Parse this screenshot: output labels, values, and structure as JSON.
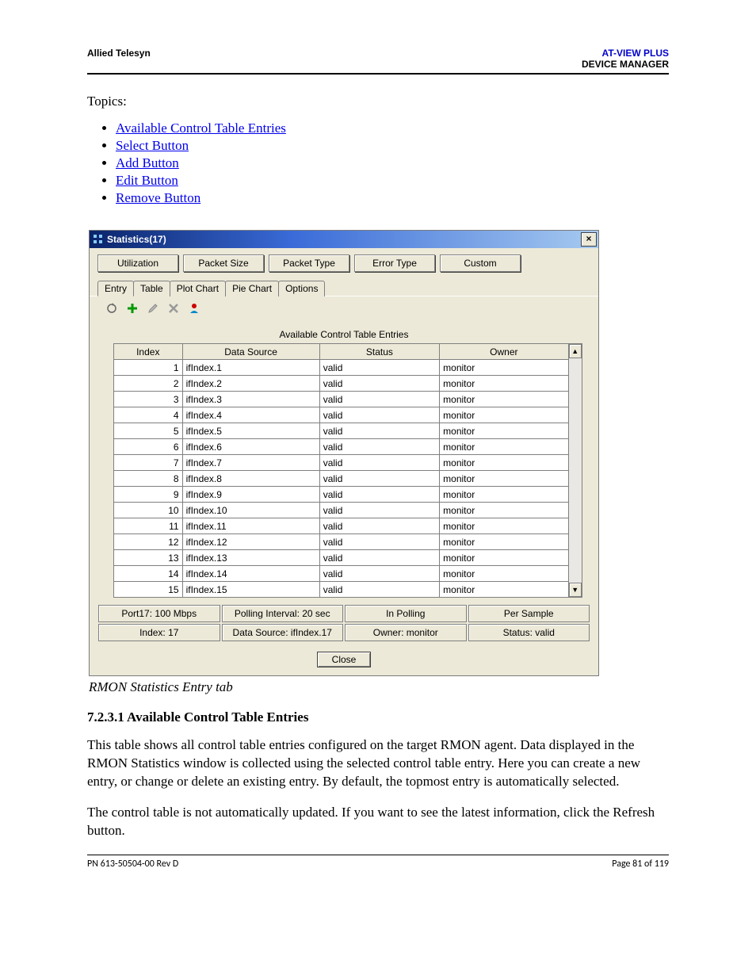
{
  "header": {
    "left": "Allied Telesyn",
    "right1": "AT-VIEW PLUS",
    "right2": "DEVICE MANAGER"
  },
  "topics_label": "Topics:",
  "topics": [
    "Available Control Table Entries",
    "Select Button",
    "Add Button",
    "Edit Button",
    "Remove Button"
  ],
  "window": {
    "title": "Statistics(17)",
    "close_x": "×",
    "tabs": [
      "Utilization",
      "Packet Size",
      "Packet Type",
      "Error Type",
      "Custom"
    ],
    "subtabs": [
      "Entry",
      "Table",
      "Plot Chart",
      "Pie Chart",
      "Options"
    ],
    "active_subtab": 0,
    "toolbar_icons": [
      "refresh",
      "add",
      "edit",
      "delete",
      "owner"
    ],
    "table_title": "Available Control Table Entries",
    "columns": [
      "Index",
      "Data Source",
      "Status",
      "Owner"
    ],
    "rows": [
      {
        "index": "1",
        "ds": "ifIndex.1",
        "status": "valid",
        "owner": "monitor"
      },
      {
        "index": "2",
        "ds": "ifIndex.2",
        "status": "valid",
        "owner": "monitor"
      },
      {
        "index": "3",
        "ds": "ifIndex.3",
        "status": "valid",
        "owner": "monitor"
      },
      {
        "index": "4",
        "ds": "ifIndex.4",
        "status": "valid",
        "owner": "monitor"
      },
      {
        "index": "5",
        "ds": "ifIndex.5",
        "status": "valid",
        "owner": "monitor"
      },
      {
        "index": "6",
        "ds": "ifIndex.6",
        "status": "valid",
        "owner": "monitor"
      },
      {
        "index": "7",
        "ds": "ifIndex.7",
        "status": "valid",
        "owner": "monitor"
      },
      {
        "index": "8",
        "ds": "ifIndex.8",
        "status": "valid",
        "owner": "monitor"
      },
      {
        "index": "9",
        "ds": "ifIndex.9",
        "status": "valid",
        "owner": "monitor"
      },
      {
        "index": "10",
        "ds": "ifIndex.10",
        "status": "valid",
        "owner": "monitor"
      },
      {
        "index": "11",
        "ds": "ifIndex.11",
        "status": "valid",
        "owner": "monitor"
      },
      {
        "index": "12",
        "ds": "ifIndex.12",
        "status": "valid",
        "owner": "monitor"
      },
      {
        "index": "13",
        "ds": "ifIndex.13",
        "status": "valid",
        "owner": "monitor"
      },
      {
        "index": "14",
        "ds": "ifIndex.14",
        "status": "valid",
        "owner": "monitor"
      },
      {
        "index": "15",
        "ds": "ifIndex.15",
        "status": "valid",
        "owner": "monitor"
      }
    ],
    "status_row1": [
      "Port17: 100 Mbps",
      "Polling Interval: 20 sec",
      "In Polling",
      "Per Sample"
    ],
    "status_row2": [
      "Index: 17",
      "Data Source: ifIndex.17",
      "Owner: monitor",
      "Status: valid"
    ],
    "close_label": "Close"
  },
  "caption": "RMON Statistics Entry tab",
  "section": {
    "heading": "7.2.3.1 Available Control Table Entries",
    "p1": "This table shows all control table entries configured on the target RMON agent. Data displayed in the RMON Statistics window is collected using the selected control table entry. Here you can create a new entry, or change or delete an existing entry. By default, the topmost entry is automatically selected.",
    "p2": "The control table is not automatically updated. If you want to see the latest information, click the Refresh button."
  },
  "footer": {
    "left": "PN 613-50504-00 Rev D",
    "right": "Page 81 of 119"
  },
  "colors": {
    "link": "#0000ee",
    "titlebar_start": "#0a246a",
    "titlebar_end": "#a6caf0",
    "win_bg": "#ece9d8",
    "header_blue": "#0000cc"
  }
}
